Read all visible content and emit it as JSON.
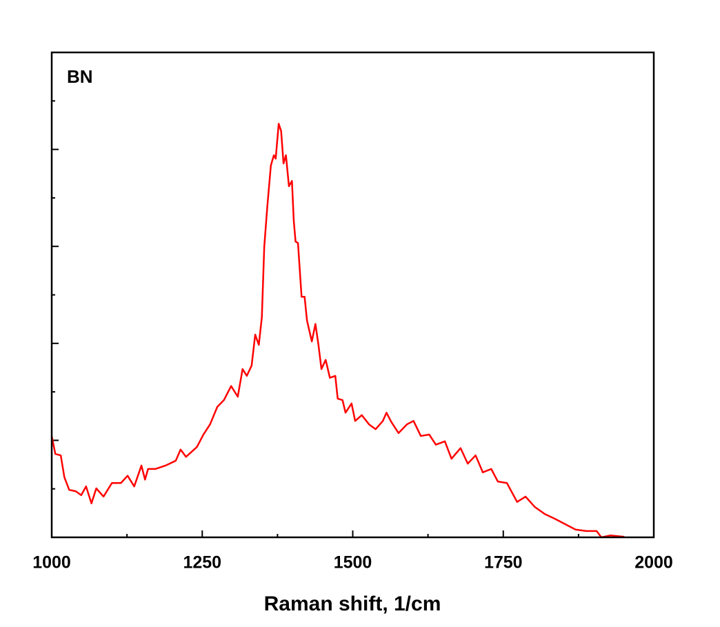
{
  "chart_data": {
    "type": "line",
    "annotation": "BN",
    "xlabel": "Raman shift, 1/cm",
    "xlim": [
      1000,
      2000
    ],
    "xticks": [
      1000,
      1250,
      1500,
      1750,
      2000
    ],
    "xticks_minor": [
      1125,
      1375,
      1625,
      1875
    ],
    "ylim": [
      0,
      10
    ],
    "yticks": [
      2,
      4,
      6,
      8
    ],
    "yticks_minor": [
      1,
      3,
      5,
      7,
      9
    ],
    "show_ytick_labels": false,
    "grid": false,
    "series": [
      {
        "color": "#ff0000",
        "x": [
          1000,
          1006,
          1015,
          1021,
          1029,
          1040,
          1049,
          1057,
          1066,
          1074,
          1086,
          1100,
          1115,
          1126,
          1137,
          1149,
          1155,
          1160,
          1172,
          1189,
          1206,
          1214,
          1223,
          1241,
          1252,
          1263,
          1275,
          1286,
          1298,
          1309,
          1317,
          1324,
          1332,
          1338,
          1344,
          1349,
          1353,
          1358,
          1364,
          1369,
          1372,
          1377,
          1381,
          1385,
          1389,
          1394,
          1399,
          1402,
          1405,
          1409,
          1415,
          1420,
          1424,
          1432,
          1438,
          1443,
          1448,
          1455,
          1462,
          1471,
          1475,
          1483,
          1488,
          1498,
          1504,
          1515,
          1527,
          1538,
          1550,
          1556,
          1564,
          1576,
          1590,
          1601,
          1613,
          1627,
          1638,
          1653,
          1664,
          1679,
          1691,
          1704,
          1716,
          1730,
          1741,
          1756,
          1773,
          1787,
          1802,
          1819,
          1836,
          1853,
          1870,
          1888,
          1905,
          1913,
          1928,
          1951
        ],
        "values": [
          2.09,
          1.72,
          1.69,
          1.24,
          0.98,
          0.95,
          0.87,
          1.05,
          0.7,
          1.01,
          0.84,
          1.12,
          1.12,
          1.27,
          1.05,
          1.48,
          1.19,
          1.41,
          1.41,
          1.48,
          1.58,
          1.81,
          1.66,
          1.86,
          2.12,
          2.33,
          2.69,
          2.83,
          3.12,
          2.9,
          3.47,
          3.33,
          3.54,
          4.18,
          3.97,
          4.54,
          5.99,
          6.81,
          7.67,
          7.88,
          7.81,
          8.53,
          8.38,
          7.71,
          7.88,
          7.24,
          7.35,
          6.53,
          6.1,
          6.07,
          4.96,
          4.96,
          4.47,
          4.04,
          4.4,
          3.97,
          3.47,
          3.66,
          3.29,
          3.33,
          2.86,
          2.83,
          2.57,
          2.76,
          2.4,
          2.52,
          2.33,
          2.23,
          2.4,
          2.57,
          2.38,
          2.15,
          2.33,
          2.4,
          2.09,
          2.12,
          1.91,
          1.98,
          1.62,
          1.84,
          1.52,
          1.69,
          1.34,
          1.41,
          1.15,
          1.12,
          0.73,
          0.84,
          0.63,
          0.48,
          0.38,
          0.27,
          0.16,
          0.13,
          0.13,
          0,
          0.04,
          0.01
        ]
      }
    ]
  }
}
